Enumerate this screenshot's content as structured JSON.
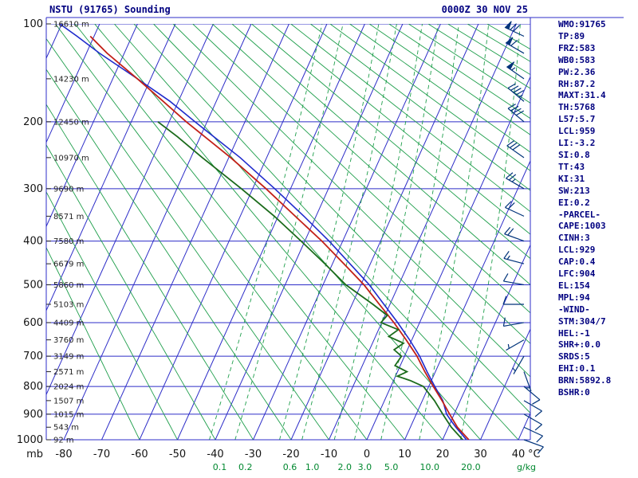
{
  "chart_data": {
    "type": "skewt_sounding",
    "title": "NSTU (91765) Sounding",
    "datetime": "0000Z 30 NOV 25",
    "axis": {
      "p_top": 100,
      "p_bottom": 1000,
      "t_min": -80,
      "t_max": 40,
      "pressure_unit": "mb",
      "temp_unit": "°C",
      "mixing_unit": "g/kg"
    },
    "pressure_ticks": [
      100,
      200,
      300,
      400,
      500,
      600,
      700,
      800,
      900,
      1000
    ],
    "temp_ticks": [
      -80,
      -70,
      -60,
      -50,
      -40,
      -30,
      -20,
      -10,
      0,
      10,
      20,
      30,
      40
    ],
    "mixing_ratio_lines": [
      0.1,
      0.2,
      0.6,
      1.0,
      2.0,
      3.0,
      5.0,
      10.0,
      20.0
    ],
    "height_labels": [
      {
        "p": 100,
        "label": "16610 m"
      },
      {
        "p": 150,
        "label": "14230 m"
      },
      {
        "p": 200,
        "label": "12450 m"
      },
      {
        "p": 250,
        "label": "10970 m"
      },
      {
        "p": 300,
        "label": "9690 m"
      },
      {
        "p": 350,
        "label": "8571 m"
      },
      {
        "p": 400,
        "label": "7580 m"
      },
      {
        "p": 450,
        "label": "6679 m"
      },
      {
        "p": 500,
        "label": "5860 m"
      },
      {
        "p": 550,
        "label": "5103 m"
      },
      {
        "p": 600,
        "label": "4409 m"
      },
      {
        "p": 650,
        "label": "3760 m"
      },
      {
        "p": 700,
        "label": "3149 m"
      },
      {
        "p": 750,
        "label": "2571 m"
      },
      {
        "p": 800,
        "label": "2024 m"
      },
      {
        "p": 850,
        "label": "1507 m"
      },
      {
        "p": 900,
        "label": "1015 m"
      },
      {
        "p": 950,
        "label": "543 m"
      },
      {
        "p": 1000,
        "label": "92 m"
      }
    ],
    "series": {
      "temperature_c": [
        [
          1000,
          26.9
        ],
        [
          950,
          22.4
        ],
        [
          900,
          18.8
        ],
        [
          850,
          15.2
        ],
        [
          800,
          11.2
        ],
        [
          750,
          7.2
        ],
        [
          700,
          3.3
        ],
        [
          650,
          -1.5
        ],
        [
          600,
          -6.8
        ],
        [
          550,
          -12.8
        ],
        [
          500,
          -19.2
        ],
        [
          450,
          -27.0
        ],
        [
          400,
          -35.5
        ],
        [
          350,
          -45.5
        ],
        [
          300,
          -56.5
        ],
        [
          250,
          -69.5
        ],
        [
          200,
          -85.5
        ],
        [
          175,
          -94.0
        ],
        [
          150,
          -103.5
        ],
        [
          125,
          -114.5
        ],
        [
          110,
          -121.0
        ]
      ],
      "dewpoint_c": [
        [
          1000,
          25.3
        ],
        [
          950,
          20.8
        ],
        [
          900,
          17.0
        ],
        [
          850,
          13.2
        ],
        [
          800,
          8.6
        ],
        [
          780,
          4.5
        ],
        [
          765,
          0.5
        ],
        [
          750,
          2.5
        ],
        [
          730,
          -1.4
        ],
        [
          700,
          -0.8
        ],
        [
          680,
          -3.5
        ],
        [
          660,
          -1.8
        ],
        [
          640,
          -6.5
        ],
        [
          620,
          -4.8
        ],
        [
          600,
          -10.2
        ],
        [
          580,
          -9.4
        ],
        [
          550,
          -14.5
        ],
        [
          500,
          -24.0
        ],
        [
          450,
          -32.0
        ],
        [
          400,
          -41.0
        ],
        [
          350,
          -51.0
        ],
        [
          300,
          -63.0
        ],
        [
          250,
          -77.0
        ],
        [
          220,
          -86.0
        ],
        [
          200,
          -93.0
        ]
      ],
      "parcel_c": [
        [
          1000,
          26.3
        ],
        [
          950,
          22.0
        ],
        [
          929,
          20.3
        ],
        [
          900,
          18.0
        ],
        [
          850,
          15.4
        ],
        [
          800,
          11.6
        ],
        [
          750,
          7.8
        ],
        [
          700,
          4.0
        ],
        [
          650,
          -0.6
        ],
        [
          600,
          -5.8
        ],
        [
          550,
          -11.6
        ],
        [
          500,
          -17.8
        ],
        [
          450,
          -25.4
        ],
        [
          400,
          -33.6
        ],
        [
          350,
          -43.2
        ],
        [
          300,
          -54.2
        ],
        [
          250,
          -67.0
        ],
        [
          200,
          -83.2
        ],
        [
          175,
          -92.2
        ],
        [
          150,
          -103.5
        ],
        [
          125,
          -116.5
        ],
        [
          110,
          -124.5
        ],
        [
          100,
          -130.5
        ]
      ]
    },
    "winds": [
      {
        "p": 1000,
        "dir": 110,
        "spd": 8
      },
      {
        "p": 950,
        "dir": 115,
        "spd": 9
      },
      {
        "p": 900,
        "dir": 120,
        "spd": 10
      },
      {
        "p": 850,
        "dir": 120,
        "spd": 10
      },
      {
        "p": 800,
        "dir": 130,
        "spd": 8
      },
      {
        "p": 750,
        "dir": 160,
        "spd": 5
      },
      {
        "p": 700,
        "dir": 210,
        "spd": 5
      },
      {
        "p": 650,
        "dir": 240,
        "spd": 7
      },
      {
        "p": 600,
        "dir": 260,
        "spd": 8
      },
      {
        "p": 550,
        "dir": 270,
        "spd": 10
      },
      {
        "p": 500,
        "dir": 280,
        "spd": 12
      },
      {
        "p": 450,
        "dir": 285,
        "spd": 15
      },
      {
        "p": 400,
        "dir": 290,
        "spd": 18
      },
      {
        "p": 350,
        "dir": 295,
        "spd": 22
      },
      {
        "p": 300,
        "dir": 300,
        "spd": 25
      },
      {
        "p": 250,
        "dir": 305,
        "spd": 30
      },
      {
        "p": 200,
        "dir": 310,
        "spd": 38
      },
      {
        "p": 175,
        "dir": 310,
        "spd": 45
      },
      {
        "p": 150,
        "dir": 305,
        "spd": 55
      },
      {
        "p": 125,
        "dir": 300,
        "spd": 62
      },
      {
        "p": 110,
        "dir": 295,
        "spd": 68
      }
    ],
    "colors": {
      "grid_blue": "#2d2dc8",
      "green": "#1e9e4b",
      "temperature": "#c22017",
      "dewpoint": "#1b6b1b",
      "parcel": "#1f2bcc",
      "barb": "#00337a",
      "navy": "#000080",
      "axis_text": "#141414",
      "green_text": "#00882f"
    }
  },
  "stats": {
    "lines": [
      "WMO:91765",
      "TP:89",
      "FRZ:583",
      "WB0:583",
      "PW:2.36",
      "RH:87.2",
      "MAXT:31.4",
      "TH:5768",
      "L57:5.7",
      "LCL:959",
      "LI:-3.2",
      "SI:0.8",
      "TT:43",
      "KI:31",
      "SW:213",
      "EI:0.2",
      "-PARCEL-",
      "CAPE:1003",
      "CINH:3",
      "LCL:929",
      "CAP:0.4",
      "LFC:904",
      "EL:154",
      "MPL:94",
      "-WIND-",
      "STM:304/7",
      "HEL:-1",
      "SHR+:0.0",
      "SRDS:5",
      "EHI:0.1",
      "BRN:5892.8",
      "BSHR:0"
    ]
  }
}
